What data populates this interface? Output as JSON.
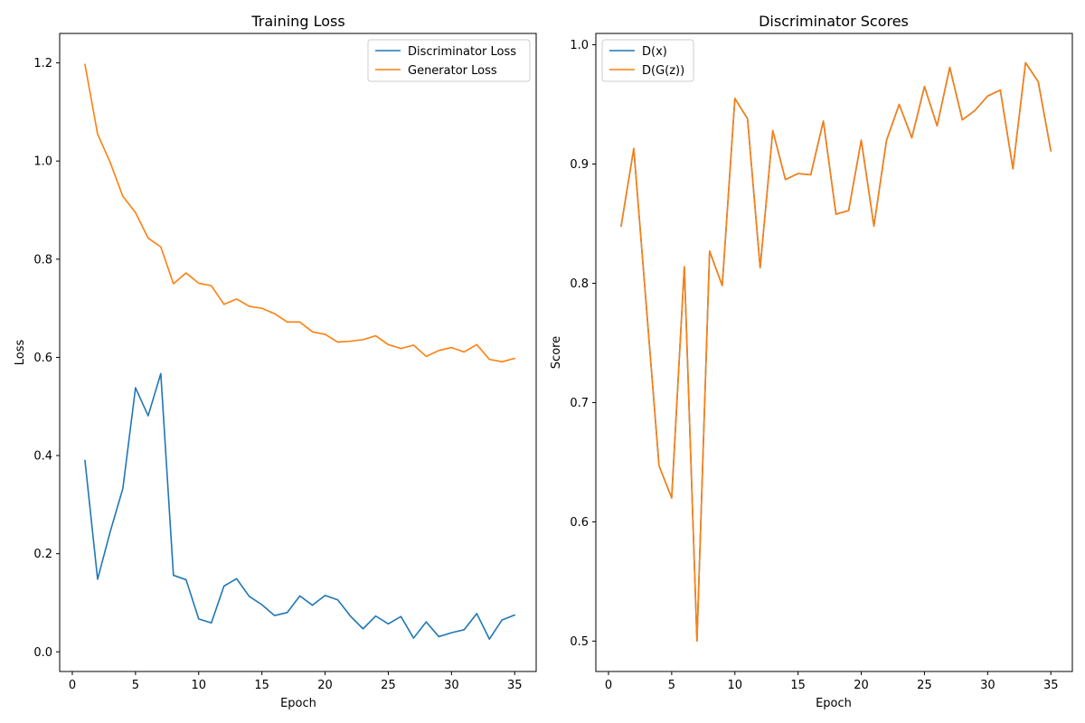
{
  "chart_data": [
    {
      "type": "line",
      "title": "Training Loss",
      "xlabel": "Epoch",
      "ylabel": "Loss",
      "xlim": [
        -1.0,
        36.7
      ],
      "ylim": [
        -0.04,
        1.26
      ],
      "xticks": [
        0,
        5,
        10,
        15,
        20,
        25,
        30,
        35
      ],
      "yticks": [
        0.0,
        0.2,
        0.4,
        0.6,
        0.8,
        1.0,
        1.2
      ],
      "ytick_labels": [
        "0.0",
        "0.2",
        "0.4",
        "0.6",
        "0.8",
        "1.0",
        "1.2"
      ],
      "legend_position": "top-right",
      "x": [
        1,
        2,
        3,
        4,
        5,
        6,
        7,
        8,
        9,
        10,
        11,
        12,
        13,
        14,
        15,
        16,
        17,
        18,
        19,
        20,
        21,
        22,
        23,
        24,
        25,
        26,
        27,
        28,
        29,
        30,
        31,
        32,
        33,
        34,
        35
      ],
      "series": [
        {
          "name": "Discriminator Loss",
          "color": "#1f77b4",
          "values": [
            0.39,
            0.148,
            0.245,
            0.333,
            0.538,
            0.481,
            0.567,
            0.156,
            0.147,
            0.067,
            0.059,
            0.134,
            0.149,
            0.113,
            0.096,
            0.074,
            0.08,
            0.114,
            0.095,
            0.115,
            0.106,
            0.073,
            0.047,
            0.073,
            0.057,
            0.072,
            0.028,
            0.061,
            0.031,
            0.039,
            0.045,
            0.078,
            0.026,
            0.065,
            0.075
          ]
        },
        {
          "name": "Generator Loss",
          "color": "#ff7f0e",
          "values": [
            1.197,
            1.055,
            0.997,
            0.928,
            0.895,
            0.843,
            0.825,
            0.75,
            0.772,
            0.751,
            0.746,
            0.708,
            0.719,
            0.704,
            0.7,
            0.689,
            0.672,
            0.672,
            0.652,
            0.647,
            0.631,
            0.633,
            0.636,
            0.644,
            0.626,
            0.618,
            0.625,
            0.602,
            0.614,
            0.62,
            0.611,
            0.626,
            0.596,
            0.591,
            0.598
          ]
        }
      ]
    },
    {
      "type": "line",
      "title": "Discriminator Scores",
      "xlabel": "Epoch",
      "ylabel": "Score",
      "xlim": [
        -1.0,
        36.7
      ],
      "ylim": [
        0.4745,
        1.0095
      ],
      "xticks": [
        0,
        5,
        10,
        15,
        20,
        25,
        30,
        35
      ],
      "yticks": [
        0.5,
        0.6,
        0.7,
        0.8,
        0.9,
        1.0
      ],
      "ytick_labels": [
        "0.5",
        "0.6",
        "0.7",
        "0.8",
        "0.9",
        "1.0"
      ],
      "legend_position": "top-left",
      "x": [
        1,
        2,
        3,
        4,
        5,
        6,
        7,
        8,
        9,
        10,
        11,
        12,
        13,
        14,
        15,
        16,
        17,
        18,
        19,
        20,
        21,
        22,
        23,
        24,
        25,
        26,
        27,
        28,
        29,
        30,
        31,
        32,
        33,
        34,
        35
      ],
      "series": [
        {
          "name": "D(x)",
          "color": "#1f77b4",
          "values": [
            0.848,
            0.913,
            0.78,
            0.647,
            0.62,
            0.814,
            0.5,
            0.827,
            0.798,
            0.955,
            0.938,
            0.813,
            0.928,
            0.887,
            0.892,
            0.891,
            0.936,
            0.858,
            0.861,
            0.92,
            0.848,
            0.92,
            0.95,
            0.922,
            0.965,
            0.932,
            0.981,
            0.937,
            0.945,
            0.957,
            0.962,
            0.896,
            0.985,
            0.969,
            0.911
          ]
        },
        {
          "name": "D(G(z))",
          "color": "#ff7f0e",
          "values": [
            0.848,
            0.913,
            0.78,
            0.647,
            0.62,
            0.814,
            0.5,
            0.827,
            0.798,
            0.955,
            0.938,
            0.813,
            0.928,
            0.887,
            0.892,
            0.891,
            0.936,
            0.858,
            0.861,
            0.92,
            0.848,
            0.92,
            0.95,
            0.922,
            0.965,
            0.932,
            0.981,
            0.937,
            0.945,
            0.957,
            0.962,
            0.896,
            0.985,
            0.969,
            0.911
          ]
        }
      ]
    }
  ]
}
